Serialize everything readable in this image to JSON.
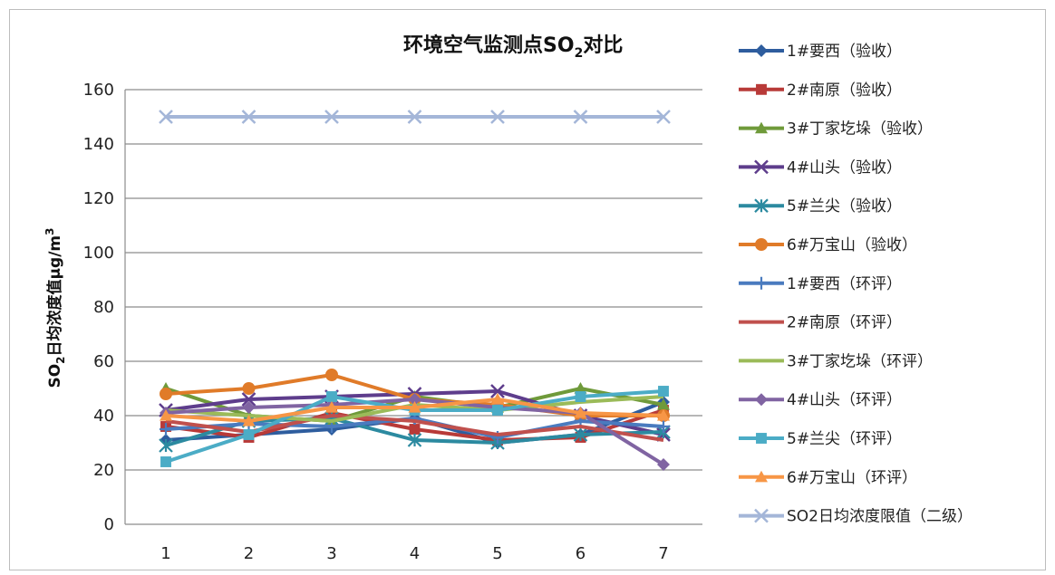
{
  "chart_data": {
    "type": "line",
    "title_main": "环境空气监测点SO",
    "title_sub": "2",
    "title_tail": "对比",
    "ylabel_main": "SO",
    "ylabel_sub": "2",
    "ylabel_mid": "日均浓度值μg/m",
    "ylabel_sup": "3",
    "x": [
      1,
      2,
      3,
      4,
      5,
      6,
      7
    ],
    "x_tick_labels": [
      "1",
      "2",
      "3",
      "4",
      "5",
      "6",
      "7"
    ],
    "y_tick_labels": [
      "0",
      "20",
      "40",
      "60",
      "80",
      "100",
      "120",
      "140",
      "160"
    ],
    "ylim": [
      0,
      160
    ],
    "y_step": 20,
    "grid": "horizontal",
    "legend_position": "right",
    "series": [
      {
        "name": "1#要西（验收）",
        "color": "#2e5d9e",
        "marker": "diamond",
        "values": [
          31,
          33,
          35,
          39,
          30,
          33,
          45
        ]
      },
      {
        "name": "2#南原（验收）",
        "color": "#b83a38",
        "marker": "square",
        "values": [
          36,
          32,
          41,
          35,
          31,
          32,
          42
        ]
      },
      {
        "name": "3#丁家圪垛（验收）",
        "color": "#6f9a3a",
        "marker": "triangle",
        "values": [
          50,
          40,
          38,
          47,
          43,
          50,
          44
        ]
      },
      {
        "name": "4#山头（验收）",
        "color": "#5e3d8c",
        "marker": "x",
        "values": [
          42,
          46,
          47,
          48,
          49,
          40,
          33
        ]
      },
      {
        "name": "5#兰尖（验收）",
        "color": "#2c8aa0",
        "marker": "asterisk",
        "values": [
          29,
          38,
          39,
          31,
          30,
          33,
          34
        ]
      },
      {
        "name": "6#万宝山（验收）",
        "color": "#e07b29",
        "marker": "circle",
        "values": [
          48,
          50,
          55,
          46,
          44,
          40,
          40
        ]
      },
      {
        "name": "1#要西（环评）",
        "color": "#4a7bbf",
        "marker": "plus",
        "values": [
          35,
          37,
          36,
          39,
          32,
          38,
          36
        ]
      },
      {
        "name": "2#南原（环评）",
        "color": "#c0504d",
        "marker": "none",
        "values": [
          38,
          34,
          40,
          38,
          33,
          36,
          31
        ]
      },
      {
        "name": "3#丁家圪垛（环评）",
        "color": "#9bbb59",
        "marker": "none",
        "values": [
          42,
          40,
          38,
          44,
          42,
          45,
          47
        ]
      },
      {
        "name": "4#山头（环评）",
        "color": "#8064a2",
        "marker": "diamond",
        "values": [
          41,
          43,
          44,
          46,
          43,
          41,
          22
        ]
      },
      {
        "name": "5#兰尖（环评）",
        "color": "#4bacc6",
        "marker": "square",
        "values": [
          23,
          33,
          47,
          42,
          42,
          47,
          49
        ]
      },
      {
        "name": "6#万宝山（环评）",
        "color": "#f79646",
        "marker": "triangle",
        "values": [
          40,
          38,
          43,
          43,
          46,
          41,
          40
        ]
      },
      {
        "name": "SO2日均浓度限值（二级）",
        "color": "#a4b6d8",
        "marker": "x",
        "values": [
          150,
          150,
          150,
          150,
          150,
          150,
          150
        ]
      }
    ]
  }
}
